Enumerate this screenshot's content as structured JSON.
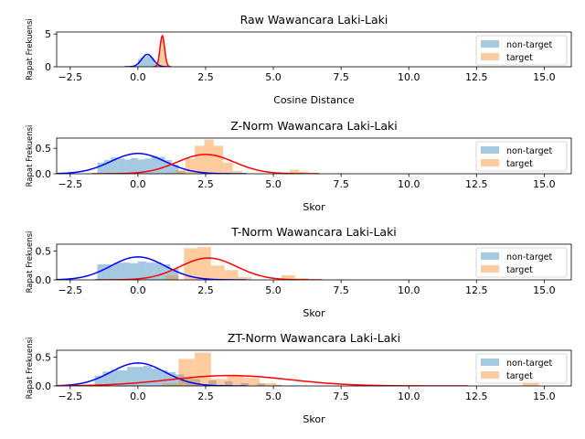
{
  "chart_data": [
    {
      "type": "histogram",
      "title": "Raw Wawancara Laki-Laki",
      "xlabel": "Cosine Distance",
      "ylabel": "Rapat Frekuensi",
      "xlim": [
        -3,
        16
      ],
      "ylim": [
        0,
        5.3
      ],
      "xticks": [
        -2.5,
        0.0,
        2.5,
        5.0,
        7.5,
        10.0,
        12.5,
        15.0
      ],
      "xtick_labels": [
        "−2.5",
        "0.0",
        "2.5",
        "5.0",
        "7.5",
        "10.0",
        "12.5",
        "15.0"
      ],
      "yticks": [
        0,
        5
      ],
      "ytick_labels": [
        "0",
        "5"
      ],
      "legend": {
        "position": "upper-right",
        "entries": [
          "non-target",
          "target"
        ]
      },
      "series": [
        {
          "name": "non-target",
          "color": "#1f77b4",
          "fit_color": "#0000ff",
          "bin_width": 0.1,
          "bins": [
            [
              -0.1,
              0.15
            ],
            [
              0.0,
              1.2
            ],
            [
              0.1,
              1.4
            ],
            [
              0.2,
              1.5
            ],
            [
              0.3,
              1.7
            ],
            [
              0.4,
              1.6
            ],
            [
              0.5,
              1.3
            ],
            [
              0.6,
              0.5
            ],
            [
              0.7,
              0.15
            ]
          ],
          "fit": {
            "mean": 0.35,
            "sd": 0.21
          }
        },
        {
          "name": "target",
          "color": "#ff7f0e",
          "fit_color": "#ff0000",
          "bin_width": 0.05,
          "bins": [
            [
              0.7,
              0.6
            ],
            [
              0.75,
              1.2
            ],
            [
              0.8,
              2.5
            ],
            [
              0.85,
              4.6
            ],
            [
              0.9,
              5.0
            ],
            [
              0.95,
              3.0
            ],
            [
              1.0,
              1.2
            ],
            [
              1.05,
              0.4
            ]
          ],
          "fit": {
            "mean": 0.9,
            "sd": 0.085
          }
        }
      ]
    },
    {
      "type": "histogram",
      "title": "Z-Norm Wawancara Laki-Laki",
      "xlabel": "Skor",
      "ylabel": "Rapat Frekuensi",
      "xlim": [
        -3,
        16
      ],
      "ylim": [
        0,
        0.7
      ],
      "xticks": [
        -2.5,
        0.0,
        2.5,
        5.0,
        7.5,
        10.0,
        12.5,
        15.0
      ],
      "xtick_labels": [
        "−2.5",
        "0.0",
        "2.5",
        "5.0",
        "7.5",
        "10.0",
        "12.5",
        "15.0"
      ],
      "yticks": [
        0,
        0.5
      ],
      "ytick_labels": [
        "0.0",
        "0.5"
      ],
      "legend": {
        "position": "upper-right",
        "entries": [
          "non-target",
          "target"
        ]
      },
      "series": [
        {
          "name": "non-target",
          "color": "#1f77b4",
          "fit_color": "#0000ff",
          "bin_width": 0.25,
          "bins": [
            [
              -1.5,
              0.22
            ],
            [
              -1.25,
              0.27
            ],
            [
              -1.0,
              0.32
            ],
            [
              -0.75,
              0.3
            ],
            [
              -0.5,
              0.28
            ],
            [
              -0.25,
              0.31
            ],
            [
              0.0,
              0.28
            ],
            [
              0.25,
              0.3
            ],
            [
              0.5,
              0.35
            ],
            [
              0.75,
              0.33
            ],
            [
              1.0,
              0.27
            ],
            [
              1.25,
              0.18
            ],
            [
              1.5,
              0.05
            ]
          ],
          "fit": {
            "mean": 0.0,
            "sd": 1.0
          }
        },
        {
          "name": "target",
          "color": "#ff7f0e",
          "fit_color": "#ff0000",
          "bin_width": 0.35,
          "bins": [
            [
              -0.7,
              0.01
            ],
            [
              1.0,
              0.02
            ],
            [
              1.4,
              0.07
            ],
            [
              1.75,
              0.3
            ],
            [
              2.1,
              0.55
            ],
            [
              2.45,
              0.67
            ],
            [
              2.8,
              0.55
            ],
            [
              3.15,
              0.22
            ],
            [
              3.5,
              0.06
            ],
            [
              5.25,
              0.02
            ],
            [
              5.6,
              0.08
            ],
            [
              5.95,
              0.04
            ],
            [
              6.3,
              0.02
            ],
            [
              7.35,
              0.01
            ]
          ],
          "fit": {
            "mean": 2.5,
            "sd": 1.05
          }
        }
      ]
    },
    {
      "type": "histogram",
      "title": "T-Norm Wawancara Laki-Laki",
      "xlabel": "Skor",
      "ylabel": "Rapat Frekuensi",
      "xlim": [
        -3,
        16
      ],
      "ylim": [
        0,
        0.62
      ],
      "xticks": [
        -2.5,
        0.0,
        2.5,
        5.0,
        7.5,
        10.0,
        12.5,
        15.0
      ],
      "xtick_labels": [
        "−2.5",
        "0.0",
        "2.5",
        "5.0",
        "7.5",
        "10.0",
        "12.5",
        "15.0"
      ],
      "yticks": [
        0,
        0.5
      ],
      "ytick_labels": [
        "0.0",
        "0.5"
      ],
      "legend": {
        "position": "upper-right",
        "entries": [
          "non-target",
          "target"
        ]
      },
      "series": [
        {
          "name": "non-target",
          "color": "#1f77b4",
          "fit_color": "#0000ff",
          "bin_width": 0.3,
          "bins": [
            [
              -1.5,
              0.27
            ],
            [
              -1.2,
              0.27
            ],
            [
              -0.9,
              0.3
            ],
            [
              -0.6,
              0.3
            ],
            [
              -0.3,
              0.29
            ],
            [
              0.0,
              0.32
            ],
            [
              0.3,
              0.3
            ],
            [
              0.6,
              0.3
            ],
            [
              0.9,
              0.27
            ],
            [
              1.2,
              0.2
            ]
          ],
          "fit": {
            "mean": 0.0,
            "sd": 1.0
          }
        },
        {
          "name": "target",
          "color": "#ff7f0e",
          "fit_color": "#ff0000",
          "bin_width": 0.5,
          "bins": [
            [
              1.0,
              0.08
            ],
            [
              1.7,
              0.55
            ],
            [
              2.2,
              0.57
            ],
            [
              2.7,
              0.25
            ],
            [
              3.2,
              0.17
            ],
            [
              3.7,
              0.05
            ],
            [
              5.3,
              0.08
            ],
            [
              5.8,
              0.03
            ],
            [
              7.3,
              0.01
            ]
          ],
          "fit": {
            "mean": 2.6,
            "sd": 1.05
          }
        }
      ]
    },
    {
      "type": "histogram",
      "title": "ZT-Norm Wawancara Laki-Laki",
      "xlabel": "Skor",
      "ylabel": "Rapat Frekuensi",
      "xlim": [
        -3,
        16
      ],
      "ylim": [
        0,
        0.62
      ],
      "xticks": [
        -2.5,
        0.0,
        2.5,
        5.0,
        7.5,
        10.0,
        12.5,
        15.0
      ],
      "xtick_labels": [
        "−2.5",
        "0.0",
        "2.5",
        "5.0",
        "7.5",
        "10.0",
        "12.5",
        "15.0"
      ],
      "yticks": [
        0,
        0.5
      ],
      "ytick_labels": [
        "0.0",
        "0.5"
      ],
      "legend": {
        "position": "upper-right",
        "entries": [
          "non-target",
          "target"
        ]
      },
      "series": [
        {
          "name": "non-target",
          "color": "#1f77b4",
          "fit_color": "#0000ff",
          "bin_width": 0.3,
          "bins": [
            [
              -1.6,
              0.18
            ],
            [
              -1.3,
              0.25
            ],
            [
              -1.0,
              0.28
            ],
            [
              -0.7,
              0.27
            ],
            [
              -0.4,
              0.33
            ],
            [
              -0.1,
              0.33
            ],
            [
              0.2,
              0.35
            ],
            [
              0.5,
              0.3
            ],
            [
              0.8,
              0.27
            ],
            [
              1.1,
              0.24
            ],
            [
              1.4,
              0.2
            ],
            [
              1.7,
              0.15
            ],
            [
              2.0,
              0.12
            ],
            [
              2.6,
              0.1
            ],
            [
              3.2,
              0.08
            ],
            [
              3.8,
              0.05
            ],
            [
              4.4,
              0.04
            ],
            [
              5.0,
              0.02
            ],
            [
              5.6,
              0.01
            ]
          ],
          "fit": {
            "mean": 0.0,
            "sd": 1.0
          }
        },
        {
          "name": "target",
          "color": "#ff7f0e",
          "fit_color": "#ff0000",
          "bin_width": 0.6,
          "bins": [
            [
              0.9,
              0.04
            ],
            [
              1.5,
              0.47
            ],
            [
              2.1,
              0.58
            ],
            [
              2.7,
              0.12
            ],
            [
              3.3,
              0.18
            ],
            [
              3.9,
              0.14
            ],
            [
              4.5,
              0.05
            ],
            [
              14.2,
              0.1
            ]
          ],
          "fit": {
            "mean": 3.4,
            "sd": 2.2
          }
        }
      ]
    }
  ]
}
